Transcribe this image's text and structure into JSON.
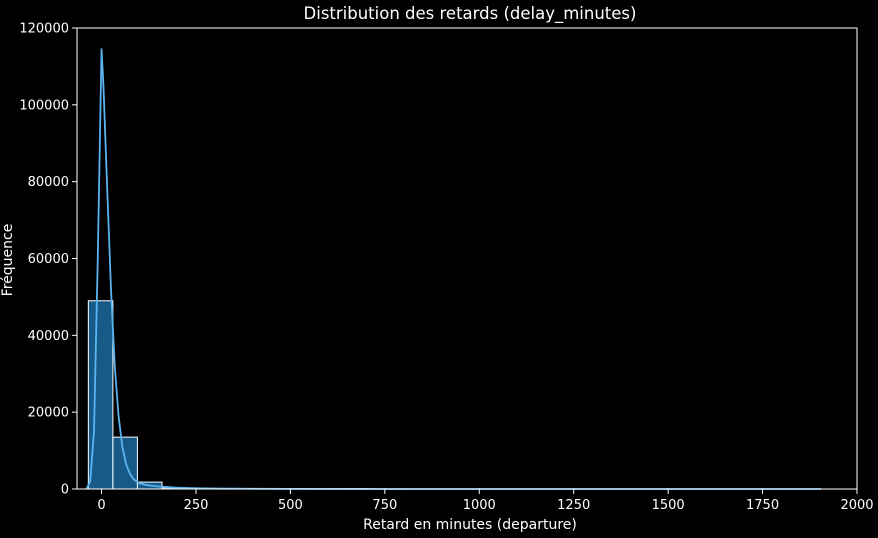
{
  "chart_data": {
    "type": "bar",
    "title": "Distribution des retards (delay_minutes)",
    "xlabel": "Retard en minutes (departure)",
    "ylabel": "Fréquence",
    "xlim": [
      -65,
      2000
    ],
    "ylim": [
      0,
      120000
    ],
    "x_ticks": [
      0,
      250,
      500,
      750,
      1000,
      1250,
      1500,
      1750,
      2000
    ],
    "y_ticks": [
      0,
      20000,
      40000,
      60000,
      80000,
      100000,
      120000
    ],
    "bin_width": 65,
    "bins": [
      {
        "start": -35,
        "end": 30,
        "count": 49000
      },
      {
        "start": 30,
        "end": 95,
        "count": 13500
      },
      {
        "start": 95,
        "end": 160,
        "count": 1800
      },
      {
        "start": 160,
        "end": 225,
        "count": 300
      },
      {
        "start": 225,
        "end": 290,
        "count": 120
      },
      {
        "start": 290,
        "end": 355,
        "count": 60
      },
      {
        "start": 355,
        "end": 420,
        "count": 30
      },
      {
        "start": 420,
        "end": 485,
        "count": 15
      },
      {
        "start": 485,
        "end": 550,
        "count": 8
      },
      {
        "start": 550,
        "end": 615,
        "count": 5
      },
      {
        "start": 615,
        "end": 680,
        "count": 3
      },
      {
        "start": 680,
        "end": 745,
        "count": 2
      },
      {
        "start": 745,
        "end": 810,
        "count": 2
      },
      {
        "start": 810,
        "end": 875,
        "count": 1
      },
      {
        "start": 875,
        "end": 940,
        "count": 1
      },
      {
        "start": 940,
        "end": 1005,
        "count": 1
      },
      {
        "start": 1005,
        "end": 1070,
        "count": 1
      },
      {
        "start": 1070,
        "end": 1135,
        "count": 0
      },
      {
        "start": 1135,
        "end": 1200,
        "count": 1
      },
      {
        "start": 1200,
        "end": 1265,
        "count": 0
      },
      {
        "start": 1265,
        "end": 1330,
        "count": 0
      },
      {
        "start": 1330,
        "end": 1395,
        "count": 0
      },
      {
        "start": 1395,
        "end": 1460,
        "count": 0
      },
      {
        "start": 1460,
        "end": 1525,
        "count": 0
      },
      {
        "start": 1525,
        "end": 1590,
        "count": 1
      },
      {
        "start": 1590,
        "end": 1655,
        "count": 0
      },
      {
        "start": 1655,
        "end": 1720,
        "count": 0
      },
      {
        "start": 1720,
        "end": 1785,
        "count": 0
      },
      {
        "start": 1785,
        "end": 1850,
        "count": 0
      },
      {
        "start": 1850,
        "end": 1915,
        "count": 1
      }
    ],
    "kde": {
      "x": [
        -40,
        -30,
        -20,
        -10,
        0,
        5,
        15,
        25,
        35,
        45,
        55,
        65,
        75,
        85,
        100,
        120,
        150,
        200,
        250,
        300,
        400,
        500,
        700,
        1000,
        1400,
        1905
      ],
      "y": [
        0,
        2000,
        15000,
        60000,
        114500,
        105000,
        78000,
        52000,
        32000,
        19000,
        11000,
        6500,
        4000,
        2500,
        1500,
        1000,
        650,
        350,
        200,
        120,
        60,
        30,
        10,
        5,
        3,
        0
      ]
    },
    "colors": {
      "background": "#000000",
      "bar_fill": "#1f77b4",
      "bar_edge": "#ffffff",
      "kde_line": "#5ab4f0",
      "axes": "#ffffff",
      "text": "#ffffff"
    },
    "grid": false,
    "legend": "none"
  }
}
